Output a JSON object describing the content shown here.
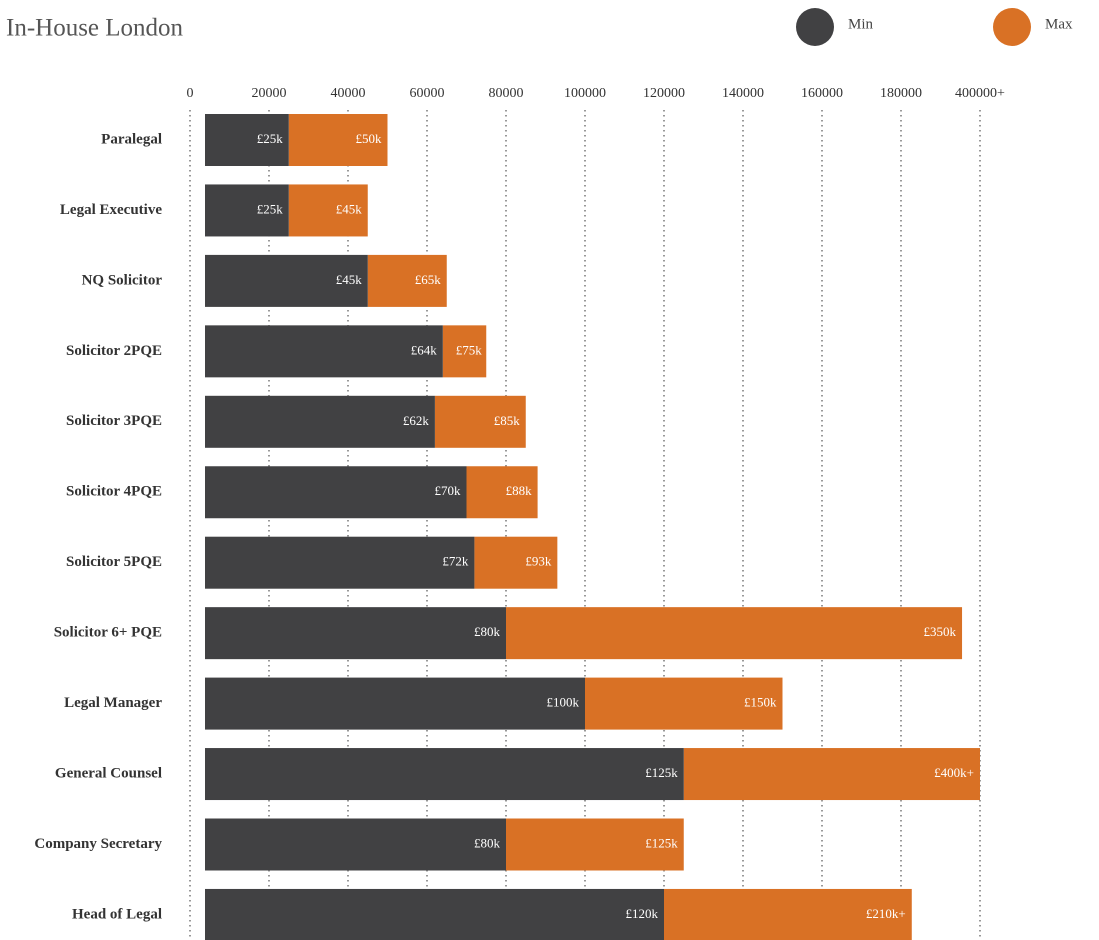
{
  "chart_data": {
    "type": "bar",
    "orientation": "horizontal",
    "title": "In-House London",
    "categories": [
      "Paralegal",
      "Legal Executive",
      "NQ Solicitor",
      "Solicitor 2PQE",
      "Solicitor 3PQE",
      "Solicitor 4PQE",
      "Solicitor 5PQE",
      "Solicitor 6+ PQE",
      "Legal Manager",
      "General Counsel",
      "Company Secretary",
      "Head of Legal"
    ],
    "series": [
      {
        "name": "Min",
        "color": "#414143",
        "values": [
          25000,
          25000,
          45000,
          64000,
          62000,
          70000,
          72000,
          80000,
          100000,
          125000,
          80000,
          120000
        ],
        "value_labels": [
          "£25k",
          "£25k",
          "£45k",
          "£64k",
          "£62k",
          "£70k",
          "£72k",
          "£80k",
          "£100k",
          "£125k",
          "£80k",
          "£120k"
        ]
      },
      {
        "name": "Max",
        "color": "#d97125",
        "values": [
          50000,
          45000,
          65000,
          75000,
          85000,
          88000,
          93000,
          350000,
          150000,
          400000,
          125000,
          210000
        ],
        "value_labels": [
          "£50k",
          "£45k",
          "£65k",
          "£75k",
          "£85k",
          "£88k",
          "£93k",
          "£350k",
          "£150k",
          "£400k+",
          "£125k",
          "£210k+"
        ]
      }
    ],
    "xlim": [
      0,
      400000
    ],
    "xticks": [
      0,
      20000,
      40000,
      60000,
      80000,
      100000,
      120000,
      140000,
      160000,
      180000,
      {
        "value": 400000,
        "label": "400000+"
      }
    ],
    "grid": true,
    "legend": "top-right"
  }
}
